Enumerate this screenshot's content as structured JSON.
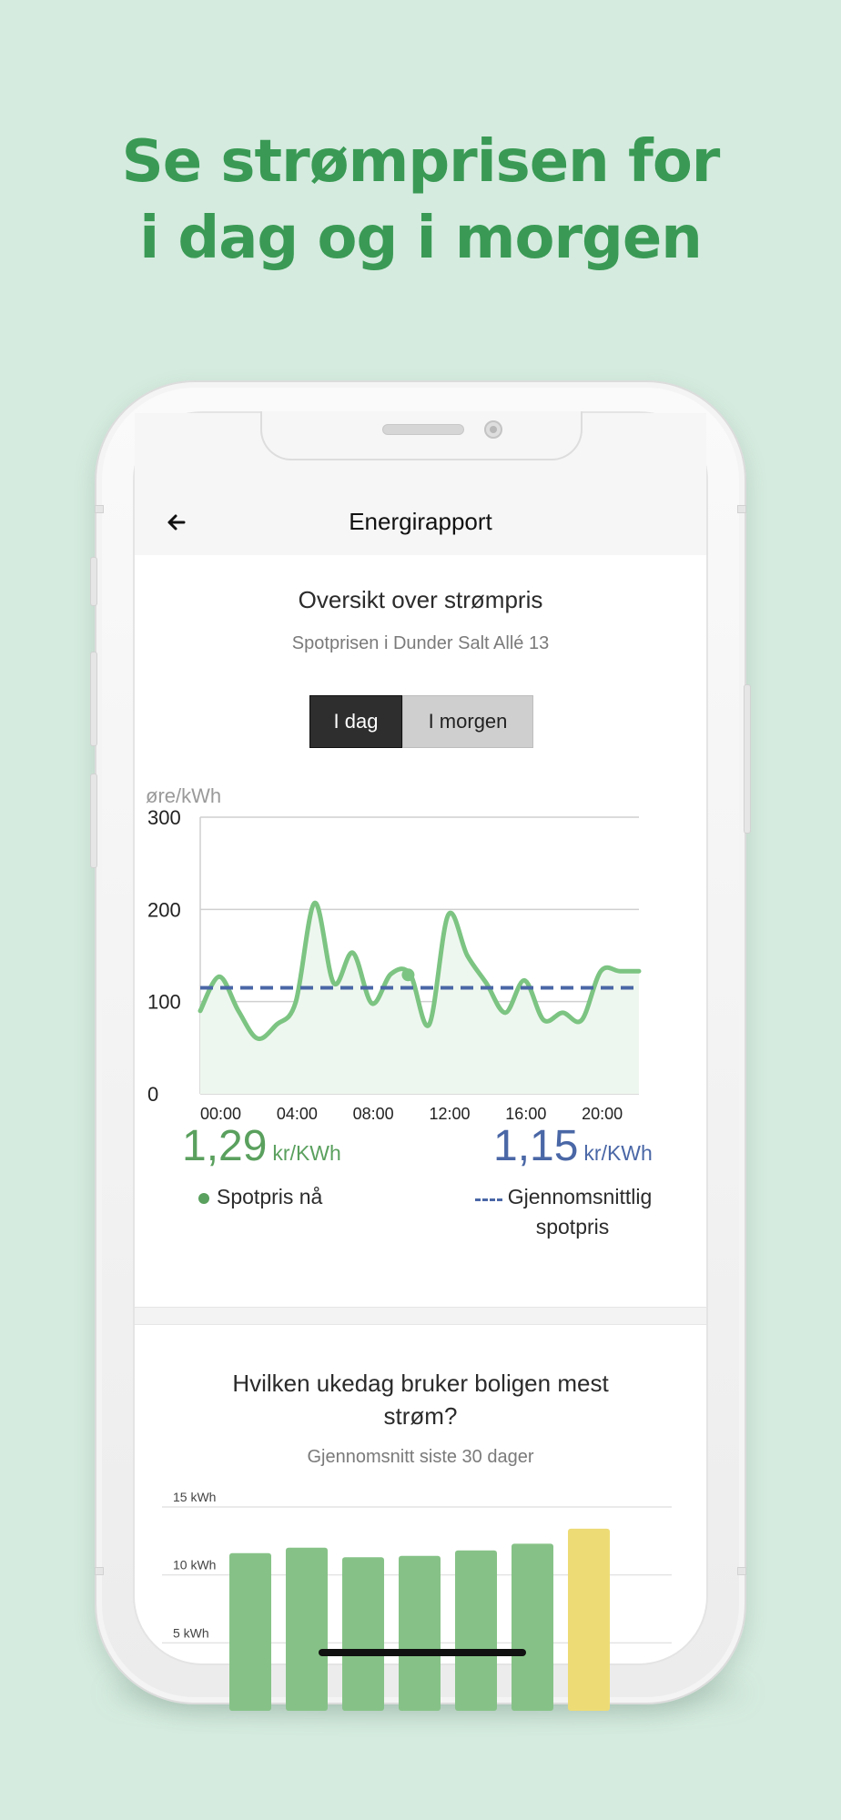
{
  "headline": {
    "line1": "Se strømprisen for",
    "line2": "i dag og i morgen"
  },
  "app": {
    "title": "Energirapport",
    "back_icon": "arrow-left-icon"
  },
  "price_card": {
    "title": "Oversikt over strømpris",
    "subtitle": "Spotprisen i Dunder Salt Allé 13",
    "tabs": [
      {
        "label": "I dag",
        "active": true
      },
      {
        "label": "I morgen",
        "active": false
      }
    ],
    "current": {
      "value": "1,29",
      "unit": "kr/KWh",
      "label": "Spotpris nå",
      "color": "#5aa05e"
    },
    "average": {
      "value": "1,15",
      "unit": "kr/KWh",
      "label_line1": "Gjennomsnittlig",
      "label_line2": "spotpris",
      "color": "#4a67a6"
    }
  },
  "weekday_card": {
    "title_line1": "Hvilken ukedag bruker boligen mest",
    "title_line2": "strøm?",
    "subtitle": "Gjennomsnitt siste 30 dager"
  },
  "chart_data": [
    {
      "type": "line",
      "ylabel": "øre/kWh",
      "ylim": [
        0,
        300
      ],
      "yticks": [
        "0",
        "100",
        "200",
        "300"
      ],
      "xticks": [
        "00:00",
        "04:00",
        "08:00",
        "12:00",
        "16:00",
        "20:00"
      ],
      "xlim": [
        0,
        23
      ],
      "grid": true,
      "series": [
        {
          "color": "#7cc482",
          "x": [
            0,
            1,
            2,
            3,
            4,
            5,
            6,
            7,
            8,
            9,
            10,
            11,
            12,
            13,
            14,
            15,
            16,
            17,
            18,
            19,
            20,
            21,
            22,
            23
          ],
          "values": [
            90,
            127,
            90,
            60,
            75,
            99,
            207,
            120,
            153,
            98,
            130,
            130,
            75,
            194,
            150,
            120,
            88,
            123,
            80,
            88,
            80,
            133,
            133,
            133
          ]
        },
        {
          "style": "dashed",
          "color": "#4a67a6",
          "x": [
            0,
            23
          ],
          "values": [
            115,
            115
          ]
        }
      ],
      "marker": {
        "x": 10.9,
        "y": 129
      }
    },
    {
      "type": "bar",
      "ylabel": "",
      "yticks": [
        "5 kWh",
        "10 kWh",
        "15 kWh"
      ],
      "ylim": [
        0,
        15
      ],
      "values": [
        11.6,
        12.0,
        11.3,
        11.4,
        11.8,
        12.3,
        13.4
      ],
      "colors": [
        "#86c287",
        "#86c287",
        "#86c287",
        "#86c287",
        "#86c287",
        "#86c287",
        "#eddc76"
      ]
    }
  ]
}
